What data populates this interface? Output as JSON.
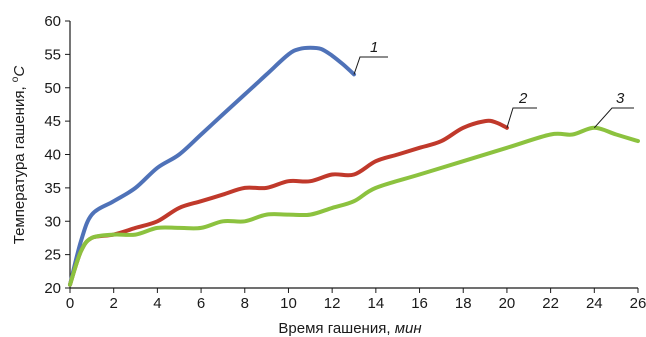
{
  "chart_data": {
    "type": "line",
    "title": "",
    "xlabel": "Время гашения, ",
    "xlabel_unit": "мин",
    "ylabel": "Температура гашения, ",
    "ylabel_sup": "o",
    "ylabel_unit": "С",
    "xlim": [
      0,
      26
    ],
    "ylim": [
      20,
      60
    ],
    "xticks": [
      0,
      2,
      4,
      6,
      8,
      10,
      12,
      14,
      16,
      18,
      20,
      22,
      24,
      26
    ],
    "yticks": [
      20,
      25,
      30,
      35,
      40,
      45,
      50,
      55,
      60
    ],
    "grid": false,
    "legend": "inline labels with leader lines",
    "series": [
      {
        "name": "1",
        "color": "#4f72b8",
        "points": [
          [
            0,
            20.5
          ],
          [
            0.5,
            27
          ],
          [
            1,
            31
          ],
          [
            2,
            33
          ],
          [
            3,
            35
          ],
          [
            4,
            38
          ],
          [
            5,
            40
          ],
          [
            6,
            43
          ],
          [
            7,
            46
          ],
          [
            8,
            49
          ],
          [
            9,
            52
          ],
          [
            10,
            55
          ],
          [
            10.5,
            55.8
          ],
          [
            11,
            56
          ],
          [
            11.5,
            55.8
          ],
          [
            12,
            54.8
          ],
          [
            12.5,
            53.5
          ],
          [
            13,
            52
          ]
        ]
      },
      {
        "name": "2",
        "color": "#c0392b",
        "points": [
          [
            0,
            20.5
          ],
          [
            0.5,
            25.5
          ],
          [
            1,
            27.5
          ],
          [
            2,
            28
          ],
          [
            3,
            29
          ],
          [
            4,
            30
          ],
          [
            5,
            32
          ],
          [
            6,
            33
          ],
          [
            7,
            34
          ],
          [
            8,
            35
          ],
          [
            9,
            35
          ],
          [
            10,
            36
          ],
          [
            11,
            36
          ],
          [
            12,
            37
          ],
          [
            13,
            37
          ],
          [
            14,
            39
          ],
          [
            15,
            40
          ],
          [
            16,
            41
          ],
          [
            17,
            42
          ],
          [
            18,
            44
          ],
          [
            19,
            45
          ],
          [
            19.5,
            44.8
          ],
          [
            20,
            44
          ]
        ]
      },
      {
        "name": "3",
        "color": "#8cc23f",
        "points": [
          [
            0,
            20.5
          ],
          [
            0.5,
            25.5
          ],
          [
            1,
            27.5
          ],
          [
            2,
            28
          ],
          [
            3,
            28
          ],
          [
            4,
            29
          ],
          [
            5,
            29
          ],
          [
            6,
            29
          ],
          [
            7,
            30
          ],
          [
            8,
            30
          ],
          [
            9,
            31
          ],
          [
            10,
            31
          ],
          [
            11,
            31
          ],
          [
            12,
            32
          ],
          [
            13,
            33
          ],
          [
            14,
            35
          ],
          [
            16,
            37
          ],
          [
            18,
            39
          ],
          [
            20,
            41
          ],
          [
            22,
            43
          ],
          [
            23,
            43
          ],
          [
            24,
            44
          ],
          [
            25,
            43
          ],
          [
            26,
            42
          ]
        ]
      }
    ]
  }
}
